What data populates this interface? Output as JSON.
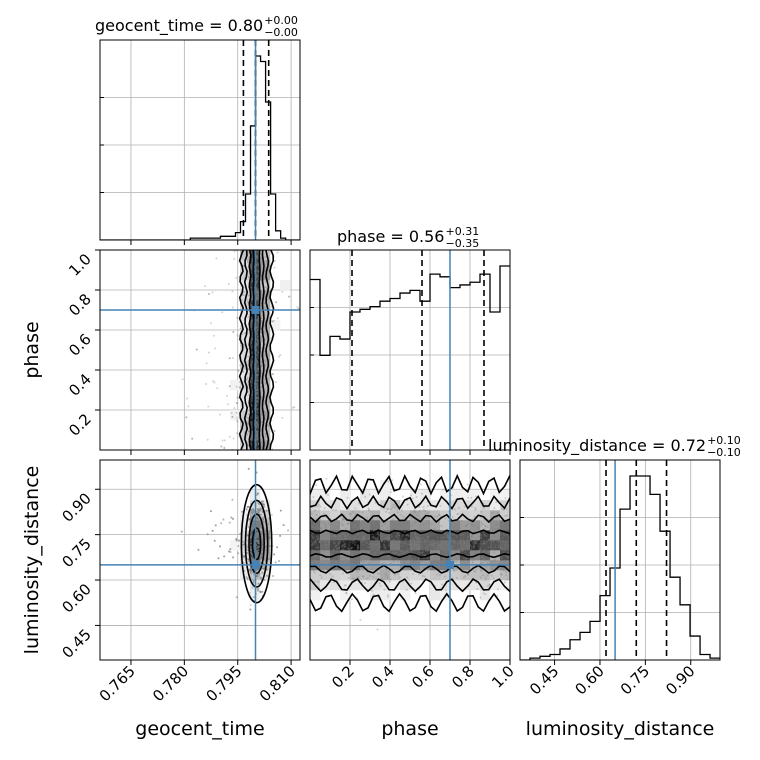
{
  "chart_data": {
    "type": "corner",
    "parameters": [
      "geocent_time",
      "phase",
      "luminosity_distance"
    ],
    "truths": {
      "geocent_time": 0.8,
      "phase": 0.7,
      "luminosity_distance": 0.65
    },
    "ranges": {
      "geocent_time": [
        0.7563,
        0.8125
      ],
      "phase": [
        0.0,
        1.0
      ],
      "luminosity_distance": [
        0.3357,
        0.9967
      ]
    },
    "quantiles": {
      "geocent_time": [
        0.7966,
        0.8,
        0.8037
      ],
      "phase": [
        0.21,
        0.56,
        0.87
      ],
      "luminosity_distance": [
        0.62,
        0.72,
        0.82
      ]
    },
    "ticks": {
      "geocent_time": {
        "values": [
          0.765,
          0.78,
          0.795,
          0.81
        ],
        "labels": [
          "0.765",
          "0.780",
          "0.795",
          "0.810"
        ]
      },
      "phase_x": {
        "values": [
          0.2,
          0.4,
          0.6,
          0.8,
          1.0
        ],
        "labels": [
          "0.2",
          "0.4",
          "0.6",
          "0.8",
          "1.0"
        ]
      },
      "phase_y": {
        "values": [
          0.2,
          0.4,
          0.6,
          0.8,
          1.0
        ],
        "labels": [
          "0.2",
          "0.4",
          "0.6",
          "0.8",
          "1.0"
        ]
      },
      "luminosity_distance": {
        "values": [
          0.45,
          0.6,
          0.75,
          0.9
        ],
        "labels": [
          "0.45",
          "0.60",
          "0.75",
          "0.90"
        ]
      }
    },
    "axis_labels": {
      "geocent_time": "geocent_time",
      "phase": "phase",
      "luminosity_distance": "luminosity_distance"
    },
    "titles": {
      "geocent_time": {
        "prefix": "geocent_time = 0.80",
        "plus": "+0.00",
        "minus": "−0.00"
      },
      "phase": {
        "prefix": "phase = 0.56",
        "plus": "+0.31",
        "minus": "−0.35"
      },
      "luminosity_distance": {
        "prefix": "luminosity_distance = 0.72",
        "plus": "+0.10",
        "minus": "−0.10"
      }
    },
    "histograms": {
      "geocent_time": {
        "edges_start": 0.7563,
        "bin_width": 0.00141,
        "counts": [
          0,
          0,
          0,
          0,
          0,
          0,
          0,
          0,
          0,
          0,
          0,
          0,
          0,
          0,
          0,
          0,
          0,
          0,
          1,
          1,
          1,
          1,
          1,
          1,
          2,
          2,
          2,
          4,
          10,
          25,
          62,
          100,
          97,
          75,
          25,
          5,
          1,
          0,
          0,
          0
        ]
      },
      "phase": {
        "edges_start": 0.0,
        "bin_width": 0.05,
        "counts": [
          63,
          35,
          42,
          41,
          51,
          52,
          53,
          55,
          56,
          58,
          59,
          55,
          65,
          64,
          60,
          61,
          62,
          65,
          51,
          68
        ]
      },
      "luminosity_distance": {
        "edges_start": 0.3357,
        "bin_width": 0.03306,
        "counts": [
          0,
          1,
          2,
          3,
          6,
          11,
          15,
          21,
          35,
          50,
          82,
          100,
          100,
          90,
          70,
          45,
          30,
          13,
          3,
          1
        ]
      }
    },
    "density_2d": {
      "geocent_time|phase": {
        "x_mean": 0.8003,
        "x_sd": 0.00142,
        "y_range": [
          0.0,
          1.0
        ]
      },
      "geocent_time|luminosity_distance": {
        "x_mean": 0.8003,
        "x_sd": 0.00142,
        "y_mean": 0.72,
        "y_sd": 0.065
      },
      "phase|luminosity_distance": {
        "x_range": [
          0.0,
          1.0
        ],
        "y_mean": 0.72,
        "y_sd": 0.065
      }
    },
    "colors": {
      "truth": "#4682b4",
      "hist": "#000000",
      "grid": "#b0b0b0",
      "points": "#808080"
    },
    "grid": true
  }
}
